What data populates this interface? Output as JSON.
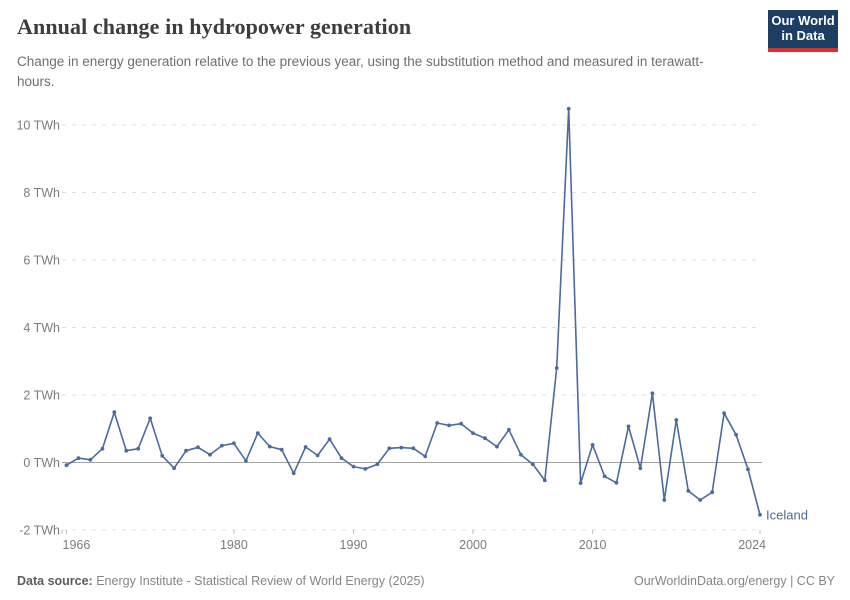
{
  "header": {
    "title": "Annual change in hydropower generation",
    "subtitle": "Change in energy generation relative to the previous year, using the substitution method and measured in terawatt-hours.",
    "logo": {
      "line1": "Our World",
      "line2": "in Data",
      "bg_color": "#1d3d63",
      "accent_color": "#dc2f2f"
    }
  },
  "footer": {
    "source_label": "Data source:",
    "source_text": " Energy Institute - Statistical Review of World Energy (2025)",
    "credit": "OurWorldinData.org/energy | CC BY"
  },
  "chart_data": {
    "type": "line",
    "title": "Annual change in hydropower generation",
    "series_label": "Iceland",
    "unit": "TWh",
    "line_color": "#4C6A9C",
    "label_color": "#4C6A9C",
    "grid": "horizontal dashed, solid zero line",
    "legend_position": "end-of-line label",
    "ylim": [
      -2,
      10.6
    ],
    "xlim": [
      1965.6,
      2025
    ],
    "yticks": [
      -2,
      0,
      2,
      4,
      6,
      8,
      10
    ],
    "ytick_suffix": " TWh",
    "xticks": [
      1966,
      1980,
      1990,
      2000,
      2010,
      2024
    ],
    "x": [
      1966,
      1967,
      1968,
      1969,
      1970,
      1971,
      1972,
      1973,
      1974,
      1975,
      1976,
      1977,
      1978,
      1979,
      1980,
      1981,
      1982,
      1983,
      1984,
      1985,
      1986,
      1987,
      1988,
      1989,
      1990,
      1991,
      1992,
      1993,
      1994,
      1995,
      1996,
      1997,
      1998,
      1999,
      2000,
      2001,
      2002,
      2003,
      2004,
      2005,
      2006,
      2007,
      2008,
      2009,
      2010,
      2011,
      2012,
      2013,
      2014,
      2015,
      2016,
      2017,
      2018,
      2019,
      2020,
      2021,
      2022,
      2023,
      2024
    ],
    "values": [
      -0.08,
      0.13,
      0.08,
      0.41,
      1.49,
      0.35,
      0.41,
      1.31,
      0.2,
      -0.17,
      0.35,
      0.45,
      0.23,
      0.5,
      0.57,
      0.05,
      0.87,
      0.47,
      0.38,
      -0.32,
      0.46,
      0.21,
      0.69,
      0.13,
      -0.12,
      -0.19,
      -0.05,
      0.42,
      0.44,
      0.42,
      0.18,
      1.17,
      1.1,
      1.15,
      0.87,
      0.72,
      0.47,
      0.97,
      0.23,
      -0.05,
      -0.53,
      2.8,
      10.48,
      -0.61,
      0.52,
      -0.41,
      -0.6,
      1.07,
      -0.17,
      2.05,
      -1.11,
      1.26,
      -0.84,
      -1.11,
      -0.88,
      1.46,
      0.82,
      -0.2,
      -1.55
    ]
  }
}
